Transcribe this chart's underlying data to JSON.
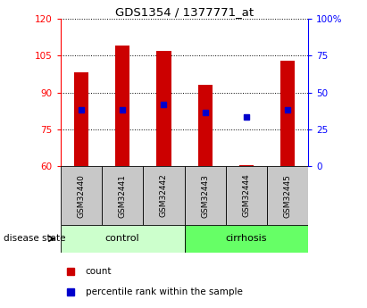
{
  "title": "GDS1354 / 1377771_at",
  "samples": [
    "GSM32440",
    "GSM32441",
    "GSM32442",
    "GSM32443",
    "GSM32444",
    "GSM32445"
  ],
  "bar_tops": [
    98,
    109,
    107,
    93,
    60.5,
    103
  ],
  "bar_bottom": 60,
  "blue_markers": [
    83,
    83,
    85,
    82,
    80,
    83
  ],
  "left_ylim": [
    60,
    120
  ],
  "right_ylim": [
    0,
    100
  ],
  "left_yticks": [
    60,
    75,
    90,
    105,
    120
  ],
  "right_yticks": [
    0,
    25,
    50,
    75,
    100
  ],
  "right_yticklabels": [
    "0",
    "25",
    "50",
    "75",
    "100%"
  ],
  "bar_color": "#cc0000",
  "blue_color": "#0000cc",
  "control_label": "control",
  "cirrhosis_label": "cirrhosis",
  "disease_state_label": "disease state",
  "legend_count": "count",
  "legend_percentile": "percentile rank within the sample",
  "control_color": "#ccffcc",
  "cirrhosis_color": "#66ff66",
  "bar_width": 0.35,
  "background_color": "#ffffff",
  "plot_bg": "#ffffff",
  "tick_label_area_color": "#c8c8c8"
}
